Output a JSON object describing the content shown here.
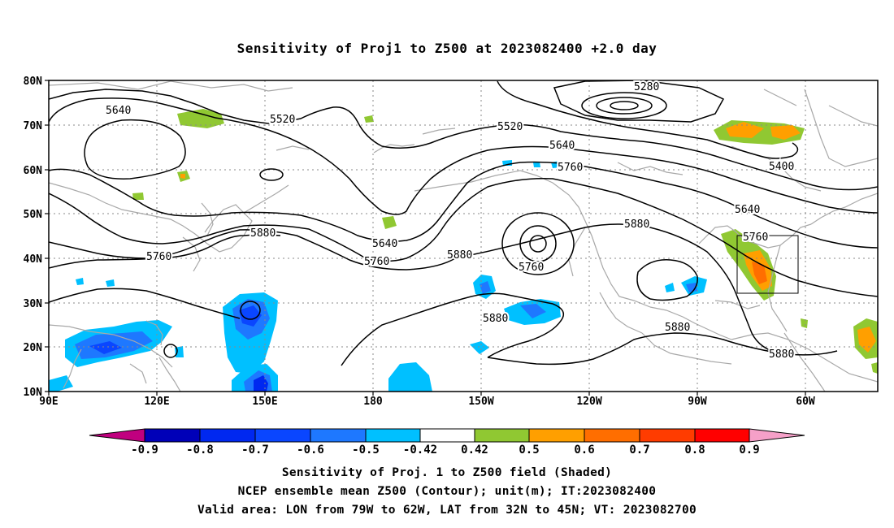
{
  "title": "Sensitivity of Proj1 to Z500 at 2023082400 +2.0 day",
  "lat_labels": [
    "80N",
    "70N",
    "60N",
    "50N",
    "40N",
    "30N",
    "20N",
    "10N"
  ],
  "lon_labels": [
    "90E",
    "120E",
    "150E",
    "180",
    "150W",
    "120W",
    "90W",
    "60W"
  ],
  "contour_labels": [
    "5280",
    "5400",
    "5520",
    "5520",
    "5640",
    "5640",
    "5640",
    "5640",
    "5760",
    "5760",
    "5760",
    "5760",
    "5760",
    "5880",
    "5880",
    "5880",
    "5880",
    "5880",
    "5880"
  ],
  "colorbar": {
    "labels": [
      "-0.9",
      "-0.8",
      "-0.7",
      "-0.6",
      "-0.5",
      "-0.42",
      "0.42",
      "0.5",
      "0.6",
      "0.7",
      "0.8",
      "0.9"
    ],
    "colors": [
      "#c0007f",
      "#0000b8",
      "#0028f0",
      "#0a46ff",
      "#1e78ff",
      "#00c0ff",
      "#ffffff",
      "#90c832",
      "#ff9f00",
      "#ff6e00",
      "#ff3c00",
      "#ff0000",
      "#f5a0c8"
    ]
  },
  "captions": [
    "Sensitivity of Proj. 1 to Z500 field (Shaded)",
    "NCEP ensemble mean Z500 (Contour); unit(m); IT:2023082400",
    "Valid area: LON from 79W to 62W, LAT from 32N to 45N; VT: 2023082700"
  ]
}
